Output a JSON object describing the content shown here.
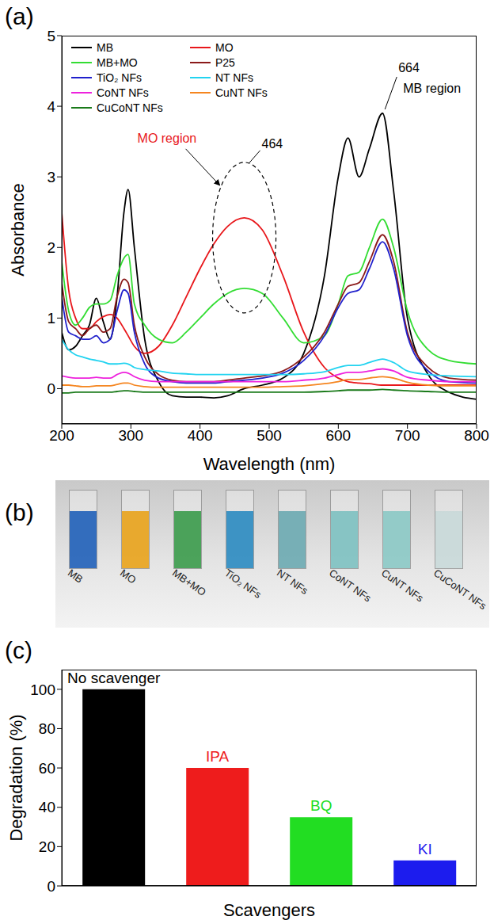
{
  "chart_data": [
    {
      "panel": "(a)",
      "type": "line",
      "x_label": "Wavelength (nm)",
      "y_label": "Absorbance",
      "x": [
        200,
        210,
        220,
        230,
        240,
        250,
        260,
        270,
        280,
        290,
        296,
        305,
        320,
        340,
        360,
        380,
        400,
        420,
        440,
        464,
        490,
        520,
        550,
        580,
        600,
        614,
        630,
        645,
        664,
        680,
        700,
        730,
        760,
        800
      ],
      "series": [
        {
          "name": "MB",
          "color": "#000000",
          "values": [
            0.8,
            0.55,
            0.6,
            0.75,
            0.9,
            1.28,
            0.95,
            0.7,
            1.3,
            2.5,
            2.82,
            2.0,
            0.7,
            0.1,
            -0.1,
            -0.12,
            -0.12,
            -0.13,
            -0.1,
            0.0,
            0.05,
            0.15,
            0.5,
            1.6,
            3.0,
            3.55,
            3.0,
            3.4,
            3.9,
            2.8,
            1.0,
            0.2,
            -0.05,
            -0.15
          ]
        },
        {
          "name": "MO",
          "color": "#e8171b",
          "values": [
            2.5,
            1.4,
            1.0,
            0.85,
            0.85,
            0.95,
            1.02,
            1.05,
            1.0,
            0.85,
            0.75,
            0.6,
            0.5,
            0.6,
            0.9,
            1.3,
            1.7,
            2.05,
            2.3,
            2.42,
            2.25,
            1.6,
            0.8,
            0.3,
            0.15,
            0.1,
            0.08,
            0.07,
            0.05,
            0.05,
            0.05,
            0.05,
            0.05,
            0.05
          ]
        },
        {
          "name": "MB+MO",
          "color": "#33dd33",
          "values": [
            1.8,
            1.1,
            0.9,
            1.0,
            1.15,
            1.2,
            1.2,
            1.25,
            1.6,
            1.85,
            1.9,
            1.2,
            0.9,
            0.7,
            0.65,
            0.8,
            1.0,
            1.2,
            1.35,
            1.42,
            1.35,
            1.0,
            0.65,
            0.75,
            1.2,
            1.6,
            1.65,
            2.0,
            2.4,
            2.0,
            1.1,
            0.55,
            0.4,
            0.35
          ]
        },
        {
          "name": "P25",
          "color": "#8b1a1a",
          "values": [
            1.5,
            0.95,
            0.85,
            0.75,
            0.85,
            0.9,
            0.8,
            0.85,
            1.3,
            1.55,
            1.5,
            0.9,
            0.45,
            0.2,
            0.12,
            0.1,
            0.1,
            0.1,
            0.12,
            0.15,
            0.18,
            0.25,
            0.45,
            0.8,
            1.2,
            1.45,
            1.5,
            1.8,
            2.18,
            1.8,
            0.8,
            0.3,
            0.15,
            0.12
          ]
        },
        {
          "name": "TiO₂ NFs",
          "color": "#2020cc",
          "values": [
            1.3,
            0.8,
            0.75,
            0.7,
            0.7,
            0.75,
            0.65,
            0.7,
            1.1,
            1.4,
            1.35,
            0.8,
            0.35,
            0.15,
            0.1,
            0.08,
            0.08,
            0.08,
            0.1,
            0.12,
            0.15,
            0.22,
            0.4,
            0.75,
            1.15,
            1.35,
            1.4,
            1.7,
            2.08,
            1.7,
            0.75,
            0.25,
            0.1,
            0.08
          ]
        },
        {
          "name": "NT NFs",
          "color": "#22d3f0",
          "values": [
            0.7,
            0.55,
            0.48,
            0.45,
            0.42,
            0.4,
            0.38,
            0.35,
            0.35,
            0.36,
            0.35,
            0.3,
            0.27,
            0.25,
            0.22,
            0.21,
            0.2,
            0.2,
            0.2,
            0.2,
            0.2,
            0.2,
            0.21,
            0.24,
            0.3,
            0.33,
            0.33,
            0.37,
            0.42,
            0.37,
            0.25,
            0.2,
            0.18,
            0.17
          ]
        },
        {
          "name": "CoNT NFs",
          "color": "#ee22dd",
          "values": [
            0.18,
            0.16,
            0.15,
            0.15,
            0.15,
            0.16,
            0.15,
            0.15,
            0.2,
            0.23,
            0.22,
            0.17,
            0.12,
            0.1,
            0.1,
            0.1,
            0.1,
            0.1,
            0.1,
            0.1,
            0.1,
            0.1,
            0.12,
            0.15,
            0.2,
            0.23,
            0.23,
            0.25,
            0.28,
            0.25,
            0.16,
            0.12,
            0.1,
            0.1
          ]
        },
        {
          "name": "CuNT NFs",
          "color": "#f5851f",
          "values": [
            0.05,
            0.05,
            0.04,
            0.03,
            0.03,
            0.04,
            0.04,
            0.04,
            0.06,
            0.08,
            0.08,
            0.05,
            0.03,
            0.02,
            0.02,
            0.02,
            0.02,
            0.02,
            0.02,
            0.02,
            0.02,
            0.03,
            0.04,
            0.07,
            0.1,
            0.13,
            0.13,
            0.15,
            0.17,
            0.15,
            0.09,
            0.05,
            0.04,
            0.04
          ]
        },
        {
          "name": "CuCoNT NFs",
          "color": "#1a7a1a",
          "values": [
            -0.06,
            -0.06,
            -0.05,
            -0.05,
            -0.05,
            -0.05,
            -0.05,
            -0.05,
            -0.04,
            -0.03,
            -0.03,
            -0.04,
            -0.05,
            -0.05,
            -0.05,
            -0.05,
            -0.05,
            -0.05,
            -0.05,
            -0.05,
            -0.05,
            -0.05,
            -0.05,
            -0.04,
            -0.03,
            -0.02,
            -0.02,
            -0.02,
            -0.01,
            -0.02,
            -0.03,
            -0.04,
            -0.05,
            -0.05
          ]
        }
      ],
      "xlim": [
        200,
        800
      ],
      "xticks": [
        200,
        300,
        400,
        500,
        600,
        700,
        800
      ],
      "ylim": [
        -0.5,
        5
      ],
      "yticks": [
        0,
        1,
        2,
        3,
        4,
        5
      ],
      "legend": "top-left",
      "annotations": [
        {
          "text": "MB region",
          "peak": "664",
          "series": "MB",
          "color": "#000000"
        },
        {
          "text": "MO region",
          "peak": "464",
          "series": "MO",
          "color": "#e8171b"
        }
      ]
    },
    {
      "panel": "(c)",
      "type": "bar",
      "categories": [
        "No scavenger",
        "IPA",
        "BQ",
        "KI"
      ],
      "values": [
        100,
        60,
        35,
        13
      ],
      "colors": [
        "#000000",
        "#ee1c1c",
        "#22dd22",
        "#1c1cee"
      ],
      "x_label": "Scavengers",
      "y_label": "Degradation (%)",
      "ylim": [
        0,
        110
      ],
      "yticks": [
        0,
        20,
        40,
        60,
        80,
        100
      ],
      "tick_labels": "y"
    }
  ],
  "photo": {
    "panel": "(b)",
    "cuvettes": [
      {
        "label": "MB",
        "color": "#1f5fb8"
      },
      {
        "label": "MO",
        "color": "#e8a21a"
      },
      {
        "label": "MB+MO",
        "color": "#3a9a4a"
      },
      {
        "label": "TiO₂ NFs",
        "color": "#2a8ac0"
      },
      {
        "label": "NT NFs",
        "color": "#6aa8b0"
      },
      {
        "label": "CoNT NFs",
        "color": "#7cc0c0"
      },
      {
        "label": "CuNT NFs",
        "color": "#8ac8c4"
      },
      {
        "label": "CuCoNT NFs",
        "color": "#c8d8d8"
      }
    ]
  }
}
